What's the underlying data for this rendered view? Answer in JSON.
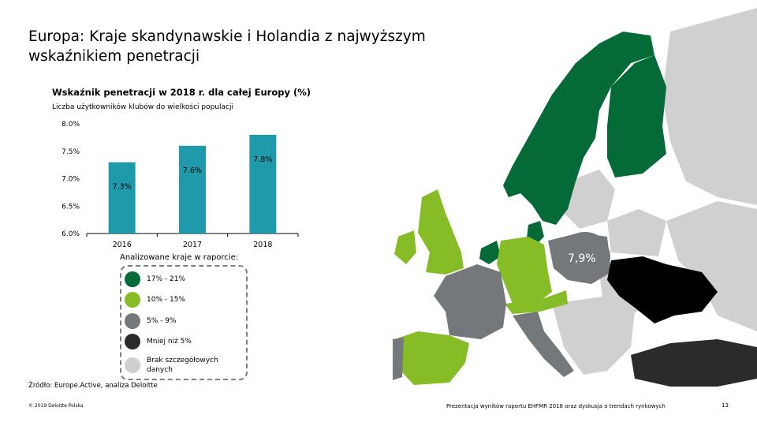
{
  "title": "Europa: Kraje skandynawskie i Holandia z najwyższym wskaźnikiem penetracji",
  "chart_title": "Wskaźnik penetracji w 2018 r. dla całej Europy (%)",
  "chart_subtitle": "Liczba użytkowników klubów do wielkości populacji",
  "chart_data": {
    "type": "bar",
    "categories": [
      "2016",
      "2017",
      "2018"
    ],
    "values": [
      7.3,
      7.6,
      7.8
    ],
    "value_labels": [
      "7.3%",
      "7.6%",
      "7.8%"
    ],
    "ylim": [
      6.0,
      8.0
    ],
    "yticks": [
      6.0,
      6.5,
      7.0,
      7.5,
      8.0
    ],
    "ytick_labels": [
      "6.0%",
      "6.5%",
      "7.0%",
      "7.5%",
      "8.0%"
    ],
    "bar_color": "#1e9aab",
    "grid": false
  },
  "legend": {
    "heading": "Analizowane kraje w raporcie:",
    "items": [
      {
        "label": "17% - 21%",
        "color": "#046a38"
      },
      {
        "label": "10% - 15%",
        "color": "#86bc25"
      },
      {
        "label": "5% - 9%",
        "color": "#75787b"
      },
      {
        "label": "Mniej niż 5%",
        "color": "#2b2b2b"
      },
      {
        "label": "Brak szczegółowych danych",
        "color": "#d0d0d0"
      }
    ]
  },
  "map": {
    "callout_value": "7,9%",
    "colors": {
      "high": "#046a38",
      "mid": "#86bc25",
      "low": "#75787b",
      "verylow": "#2b2b2b",
      "nodata": "#d0d0d0",
      "black": "#000000"
    }
  },
  "source": "Źródło: Europe.Active, analiza Deloitte",
  "footer_left": "© 2019 Deloitte Polska",
  "footer_right": "Prezentacja wyników raportu EHFMR 2018 oraz dyskusja o trendach rynkowych",
  "page_number": "13"
}
